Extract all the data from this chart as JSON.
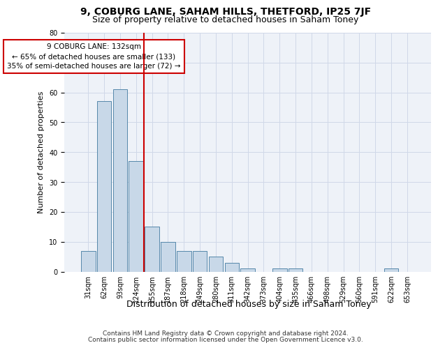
{
  "title1": "9, COBURG LANE, SAHAM HILLS, THETFORD, IP25 7JF",
  "title2": "Size of property relative to detached houses in Saham Toney",
  "xlabel": "Distribution of detached houses by size in Saham Toney",
  "ylabel": "Number of detached properties",
  "categories": [
    "31sqm",
    "62sqm",
    "93sqm",
    "124sqm",
    "155sqm",
    "187sqm",
    "218sqm",
    "249sqm",
    "280sqm",
    "311sqm",
    "342sqm",
    "373sqm",
    "404sqm",
    "435sqm",
    "466sqm",
    "498sqm",
    "529sqm",
    "560sqm",
    "591sqm",
    "622sqm",
    "653sqm"
  ],
  "values": [
    7,
    57,
    61,
    37,
    15,
    10,
    7,
    7,
    5,
    3,
    1,
    0,
    1,
    1,
    0,
    0,
    0,
    0,
    0,
    1,
    0
  ],
  "bar_color": "#c8d8e8",
  "bar_edgecolor": "#5588aa",
  "vline_x": 3.5,
  "vline_color": "#cc0000",
  "annotation_text": "9 COBURG LANE: 132sqm\n← 65% of detached houses are smaller (133)\n35% of semi-detached houses are larger (72) →",
  "annotation_box_color": "#ffffff",
  "annotation_box_edgecolor": "#cc0000",
  "ylim": [
    0,
    80
  ],
  "yticks": [
    0,
    10,
    20,
    30,
    40,
    50,
    60,
    70,
    80
  ],
  "grid_color": "#d0d8e8",
  "background_color": "#eef2f8",
  "footer_line1": "Contains HM Land Registry data © Crown copyright and database right 2024.",
  "footer_line2": "Contains public sector information licensed under the Open Government Licence v3.0.",
  "title1_fontsize": 10,
  "title2_fontsize": 9,
  "xlabel_fontsize": 9,
  "ylabel_fontsize": 8,
  "tick_fontsize": 7,
  "footer_fontsize": 6.5
}
